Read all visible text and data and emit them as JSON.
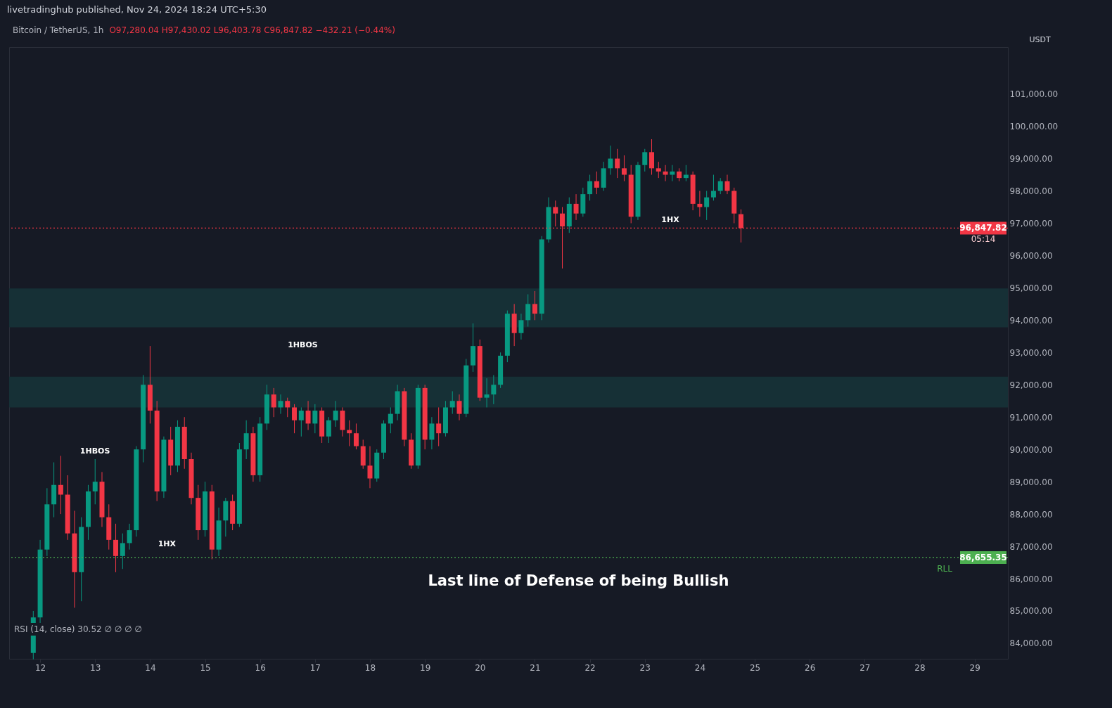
{
  "chart_data": {
    "type": "candlestick",
    "title": "Bitcoin / TetherUS, 1h",
    "ylabel": "USDT",
    "annotations": [
      "livetradinghub published, Nov 24, 2024 18:24 UTC+5:30",
      "O97,280.04 H97,430.02 L96,403.78 C96,847.82 −432.21 (−0.44%)",
      "RSI (14, close) 30.52 ∅ ∅ ∅ ∅",
      "05:14",
      "RLL",
      "1HBOS",
      "1HBOS",
      "1HX",
      "1HX",
      "Last line of Defense of being Bullish"
    ],
    "x": [
      "2024-11-11T21:00",
      "2024-11-12T00:00",
      "2024-11-12T03:00",
      "2024-11-12T06:00",
      "2024-11-12T09:00",
      "2024-11-12T12:00",
      "2024-11-12T15:00",
      "2024-11-12T18:00",
      "2024-11-12T21:00",
      "2024-11-13T00:00",
      "2024-11-13T03:00",
      "2024-11-13T06:00",
      "2024-11-13T09:00",
      "2024-11-13T12:00",
      "2024-11-13T15:00",
      "2024-11-13T18:00",
      "2024-11-13T21:00",
      "2024-11-14T00:00",
      "2024-11-14T03:00",
      "2024-11-14T06:00",
      "2024-11-14T09:00",
      "2024-11-14T12:00",
      "2024-11-14T15:00",
      "2024-11-14T18:00",
      "2024-11-14T21:00",
      "2024-11-15T00:00",
      "2024-11-15T03:00",
      "2024-11-15T06:00",
      "2024-11-15T09:00",
      "2024-11-15T12:00",
      "2024-11-15T15:00",
      "2024-11-15T18:00",
      "2024-11-15T21:00",
      "2024-11-16T00:00",
      "2024-11-16T03:00",
      "2024-11-16T06:00",
      "2024-11-16T09:00",
      "2024-11-16T12:00",
      "2024-11-16T15:00",
      "2024-11-16T18:00",
      "2024-11-16T21:00",
      "2024-11-17T00:00",
      "2024-11-17T03:00",
      "2024-11-17T06:00",
      "2024-11-17T09:00",
      "2024-11-17T12:00",
      "2024-11-17T15:00",
      "2024-11-17T18:00",
      "2024-11-17T21:00",
      "2024-11-18T00:00",
      "2024-11-18T03:00",
      "2024-11-18T06:00",
      "2024-11-18T09:00",
      "2024-11-18T12:00",
      "2024-11-18T15:00",
      "2024-11-18T18:00",
      "2024-11-18T21:00",
      "2024-11-19T00:00",
      "2024-11-19T03:00",
      "2024-11-19T06:00",
      "2024-11-19T09:00",
      "2024-11-19T12:00",
      "2024-11-19T15:00",
      "2024-11-19T18:00",
      "2024-11-19T21:00",
      "2024-11-20T00:00",
      "2024-11-20T03:00",
      "2024-11-20T06:00",
      "2024-11-20T09:00",
      "2024-11-20T12:00",
      "2024-11-20T15:00",
      "2024-11-20T18:00",
      "2024-11-20T21:00",
      "2024-11-21T00:00",
      "2024-11-21T03:00",
      "2024-11-21T06:00",
      "2024-11-21T09:00",
      "2024-11-21T12:00",
      "2024-11-21T15:00",
      "2024-11-21T18:00",
      "2024-11-21T21:00",
      "2024-11-22T00:00",
      "2024-11-22T03:00",
      "2024-11-22T06:00",
      "2024-11-22T09:00",
      "2024-11-22T12:00",
      "2024-11-22T15:00",
      "2024-11-22T18:00",
      "2024-11-22T21:00",
      "2024-11-23T00:00",
      "2024-11-23T03:00",
      "2024-11-23T06:00",
      "2024-11-23T09:00",
      "2024-11-23T12:00",
      "2024-11-23T15:00",
      "2024-11-23T18:00",
      "2024-11-23T21:00",
      "2024-11-24T00:00",
      "2024-11-24T03:00",
      "2024-11-24T06:00",
      "2024-11-24T09:00",
      "2024-11-24T12:00",
      "2024-11-24T15:00",
      "2024-11-24T18:00"
    ],
    "ohlc": [
      [
        83700,
        85000,
        83500,
        84800
      ],
      [
        84800,
        87200,
        84600,
        86900
      ],
      [
        86900,
        88800,
        86700,
        88300
      ],
      [
        88300,
        89600,
        87900,
        88900
      ],
      [
        88900,
        89800,
        88000,
        88600
      ],
      [
        88600,
        89200,
        87200,
        87400
      ],
      [
        87400,
        88100,
        85100,
        86200
      ],
      [
        86200,
        87900,
        85300,
        87600
      ],
      [
        87600,
        88900,
        87200,
        88700
      ],
      [
        88700,
        89700,
        88300,
        89000
      ],
      [
        89000,
        89300,
        87600,
        87900
      ],
      [
        87900,
        88300,
        86900,
        87200
      ],
      [
        87200,
        87700,
        86200,
        86700
      ],
      [
        86700,
        87400,
        86300,
        87100
      ],
      [
        87100,
        87700,
        86900,
        87500
      ],
      [
        87500,
        90100,
        87300,
        90000
      ],
      [
        90000,
        92300,
        89600,
        92000
      ],
      [
        92000,
        93200,
        90800,
        91200
      ],
      [
        91200,
        91500,
        88400,
        88700
      ],
      [
        88700,
        90400,
        88500,
        90300
      ],
      [
        90300,
        90700,
        89200,
        89500
      ],
      [
        89500,
        90900,
        89300,
        90700
      ],
      [
        90700,
        91000,
        89400,
        89700
      ],
      [
        89700,
        89900,
        88300,
        88500
      ],
      [
        88500,
        88900,
        87200,
        87500
      ],
      [
        87500,
        89000,
        87300,
        88700
      ],
      [
        88700,
        88900,
        86600,
        86900
      ],
      [
        86900,
        88200,
        86700,
        87800
      ],
      [
        87800,
        88500,
        87300,
        88400
      ],
      [
        88400,
        88600,
        87500,
        87700
      ],
      [
        87700,
        90200,
        87600,
        90000
      ],
      [
        90000,
        90900,
        89700,
        90500
      ],
      [
        90500,
        90700,
        89000,
        89200
      ],
      [
        89200,
        91000,
        89000,
        90800
      ],
      [
        90800,
        92000,
        90600,
        91700
      ],
      [
        91700,
        91900,
        91000,
        91300
      ],
      [
        91300,
        91700,
        91100,
        91500
      ],
      [
        91500,
        91600,
        91000,
        91300
      ],
      [
        91300,
        91400,
        90500,
        90900
      ],
      [
        90900,
        91300,
        90400,
        91200
      ],
      [
        91200,
        91500,
        90600,
        90800
      ],
      [
        90800,
        91400,
        90500,
        91200
      ],
      [
        91200,
        91300,
        90200,
        90400
      ],
      [
        90400,
        91000,
        90200,
        90900
      ],
      [
        90900,
        91500,
        90700,
        91200
      ],
      [
        91200,
        91300,
        90400,
        90600
      ],
      [
        90600,
        90900,
        90100,
        90500
      ],
      [
        90500,
        90800,
        90000,
        90100
      ],
      [
        90100,
        90300,
        89400,
        89500
      ],
      [
        89500,
        90100,
        88800,
        89100
      ],
      [
        89100,
        90000,
        89000,
        89900
      ],
      [
        89900,
        90900,
        89700,
        90800
      ],
      [
        90800,
        91300,
        90500,
        91100
      ],
      [
        91100,
        92000,
        90900,
        91800
      ],
      [
        91800,
        91900,
        90100,
        90300
      ],
      [
        90300,
        90500,
        89400,
        89500
      ],
      [
        89500,
        92000,
        89400,
        91900
      ],
      [
        91900,
        92000,
        90000,
        90300
      ],
      [
        90300,
        91000,
        90000,
        90800
      ],
      [
        90800,
        91300,
        90100,
        90500
      ],
      [
        90500,
        91500,
        90400,
        91300
      ],
      [
        91300,
        91800,
        91100,
        91500
      ],
      [
        91500,
        91700,
        90900,
        91100
      ],
      [
        91100,
        92800,
        91000,
        92600
      ],
      [
        92600,
        93900,
        92400,
        93200
      ],
      [
        93200,
        93400,
        91500,
        91600
      ],
      [
        91600,
        92200,
        91300,
        91700
      ],
      [
        91700,
        92300,
        91400,
        92000
      ],
      [
        92000,
        93000,
        91900,
        92900
      ],
      [
        92900,
        94300,
        92700,
        94200
      ],
      [
        94200,
        94500,
        93200,
        93600
      ],
      [
        93600,
        94200,
        93400,
        94000
      ],
      [
        94000,
        94800,
        93800,
        94500
      ],
      [
        94500,
        94900,
        94000,
        94200
      ],
      [
        94200,
        96600,
        94000,
        96500
      ],
      [
        96500,
        97800,
        96400,
        97500
      ],
      [
        97500,
        97700,
        96900,
        97300
      ],
      [
        97300,
        97500,
        95600,
        96900
      ],
      [
        96900,
        97800,
        96700,
        97600
      ],
      [
        97600,
        97900,
        97100,
        97300
      ],
      [
        97300,
        98100,
        97200,
        97900
      ],
      [
        97900,
        98500,
        97700,
        98300
      ],
      [
        98300,
        98600,
        97900,
        98100
      ],
      [
        98100,
        98900,
        98000,
        98700
      ],
      [
        98700,
        99400,
        98500,
        99000
      ],
      [
        99000,
        99300,
        98400,
        98700
      ],
      [
        98700,
        99100,
        98300,
        98500
      ],
      [
        98500,
        98800,
        97000,
        97200
      ],
      [
        97200,
        98900,
        97100,
        98800
      ],
      [
        98800,
        99300,
        98600,
        99200
      ],
      [
        99200,
        99600,
        98500,
        98700
      ],
      [
        98700,
        98900,
        98400,
        98600
      ],
      [
        98600,
        98800,
        98300,
        98500
      ],
      [
        98500,
        98800,
        98300,
        98600
      ],
      [
        98600,
        98700,
        98300,
        98400
      ],
      [
        98400,
        98800,
        98300,
        98500
      ],
      [
        98500,
        98600,
        97400,
        97600
      ],
      [
        97600,
        98000,
        97200,
        97500
      ],
      [
        97500,
        98000,
        97100,
        97800
      ],
      [
        97800,
        98500,
        97700,
        98000
      ],
      [
        98000,
        98400,
        97900,
        98300
      ],
      [
        98300,
        98500,
        97900,
        98000
      ],
      [
        98000,
        98100,
        97000,
        97300
      ],
      [
        97280.04,
        97430.02,
        96403.78,
        96847.82
      ]
    ],
    "xlim": [
      "2024-11-11T12:00",
      "2024-11-29T13:00"
    ],
    "xticks": [
      {
        "value": "2024-11-12",
        "label": "12"
      },
      {
        "value": "2024-11-13",
        "label": "13"
      },
      {
        "value": "2024-11-14",
        "label": "14"
      },
      {
        "value": "2024-11-15",
        "label": "15"
      },
      {
        "value": "2024-11-16",
        "label": "16"
      },
      {
        "value": "2024-11-17",
        "label": "17"
      },
      {
        "value": "2024-11-18",
        "label": "18"
      },
      {
        "value": "2024-11-19",
        "label": "19"
      },
      {
        "value": "2024-11-20",
        "label": "20"
      },
      {
        "value": "2024-11-21",
        "label": "21"
      },
      {
        "value": "2024-11-22",
        "label": "22"
      },
      {
        "value": "2024-11-23",
        "label": "23"
      },
      {
        "value": "2024-11-24",
        "label": "24"
      },
      {
        "value": "2024-11-25",
        "label": "25"
      },
      {
        "value": "2024-11-26",
        "label": "26"
      },
      {
        "value": "2024-11-27",
        "label": "27"
      },
      {
        "value": "2024-11-28",
        "label": "28"
      },
      {
        "value": "2024-11-29",
        "label": "29"
      }
    ],
    "ylim": [
      83520,
      102450
    ],
    "yticks": [
      {
        "value": 84000,
        "label": "84,000.00"
      },
      {
        "value": 85000,
        "label": "85,000.00"
      },
      {
        "value": 86000,
        "label": "86,000.00"
      },
      {
        "value": 87000,
        "label": "87,000.00"
      },
      {
        "value": 88000,
        "label": "88,000.00"
      },
      {
        "value": 89000,
        "label": "89,000.00"
      },
      {
        "value": 90000,
        "label": "90,000.00"
      },
      {
        "value": 91000,
        "label": "91,000.00"
      },
      {
        "value": 92000,
        "label": "92,000.00"
      },
      {
        "value": 93000,
        "label": "93,000.00"
      },
      {
        "value": 94000,
        "label": "94,000.00"
      },
      {
        "value": 95000,
        "label": "95,000.00"
      },
      {
        "value": 96000,
        "label": "96,000.00"
      },
      {
        "value": 97000,
        "label": "97,000.00"
      },
      {
        "value": 98000,
        "label": "98,000.00"
      },
      {
        "value": 99000,
        "label": "99,000.00"
      },
      {
        "value": 100000,
        "label": "100,000.00"
      },
      {
        "value": 101000,
        "label": "101,000.00"
      }
    ],
    "ref_lines": [
      {
        "axis": "y",
        "value": 96847.82,
        "label": "96,847.82",
        "color": "#f23645",
        "line_style": "dotted"
      },
      {
        "axis": "y",
        "value": 86655.35,
        "label": "86,655.35",
        "color": "#4caf50",
        "line_style": "dotted"
      }
    ],
    "bands": [
      {
        "axis": "y",
        "from": 93780,
        "to": 94980,
        "color": "#163036"
      },
      {
        "axis": "y",
        "from": 91300,
        "to": 92250,
        "color": "#163036"
      }
    ],
    "grid": false,
    "legend": false
  }
}
